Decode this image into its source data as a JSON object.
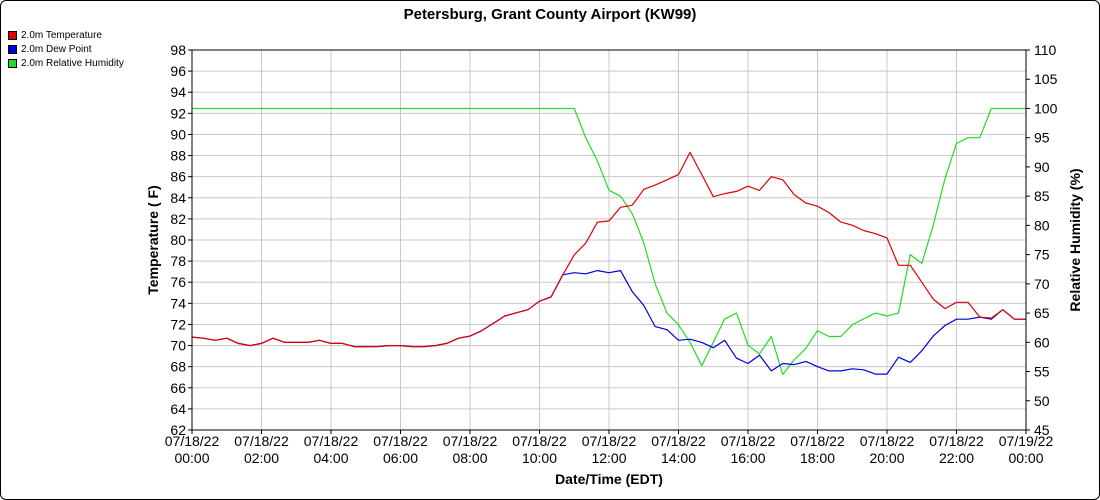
{
  "chart_data": {
    "type": "line",
    "title": "Petersburg, Grant County Airport (KW99)",
    "xlabel": "Date/Time (EDT)",
    "ylabel": "Temperature ( F)",
    "y2label": "Relative Humidity (%)",
    "ylim": [
      62,
      98
    ],
    "y2lim": [
      45,
      110
    ],
    "xlim": [
      "2022-07-18 00:00",
      "2022-07-19 00:00"
    ],
    "grid": true,
    "legend_position": "top-left",
    "x_ticks": [
      {
        "hours": 0,
        "date": "07/18/22",
        "time": "00:00"
      },
      {
        "hours": 2,
        "date": "07/18/22",
        "time": "02:00"
      },
      {
        "hours": 4,
        "date": "07/18/22",
        "time": "04:00"
      },
      {
        "hours": 6,
        "date": "07/18/22",
        "time": "06:00"
      },
      {
        "hours": 8,
        "date": "07/18/22",
        "time": "08:00"
      },
      {
        "hours": 10,
        "date": "07/18/22",
        "time": "10:00"
      },
      {
        "hours": 12,
        "date": "07/18/22",
        "time": "12:00"
      },
      {
        "hours": 14,
        "date": "07/18/22",
        "time": "14:00"
      },
      {
        "hours": 16,
        "date": "07/18/22",
        "time": "16:00"
      },
      {
        "hours": 18,
        "date": "07/18/22",
        "time": "18:00"
      },
      {
        "hours": 20,
        "date": "07/18/22",
        "time": "20:00"
      },
      {
        "hours": 22,
        "date": "07/18/22",
        "time": "22:00"
      },
      {
        "hours": 24,
        "date": "07/19/22",
        "time": "00:00"
      }
    ],
    "y_ticks": [
      62,
      64,
      66,
      68,
      70,
      72,
      74,
      76,
      78,
      80,
      82,
      84,
      86,
      88,
      90,
      92,
      94,
      96,
      98
    ],
    "y2_ticks": [
      45,
      50,
      55,
      60,
      65,
      70,
      75,
      80,
      85,
      90,
      95,
      100,
      105,
      110
    ],
    "series": [
      {
        "name": "2.0m Temperature",
        "color": "#e00000",
        "axis": "left",
        "hours": [
          0,
          0.33,
          0.67,
          1,
          1.33,
          1.67,
          2,
          2.33,
          2.67,
          3,
          3.33,
          3.67,
          4,
          4.33,
          4.67,
          5,
          5.33,
          5.67,
          6,
          6.33,
          6.67,
          7,
          7.33,
          7.67,
          8,
          8.33,
          8.67,
          9,
          9.33,
          9.67,
          10,
          10.33,
          10.67,
          11,
          11.33,
          11.67,
          12,
          12.33,
          12.67,
          13,
          13.33,
          13.67,
          14,
          14.33,
          14.67,
          15,
          15.33,
          15.67,
          16,
          16.33,
          16.67,
          17,
          17.33,
          17.67,
          18,
          18.33,
          18.67,
          19,
          19.33,
          19.67,
          20,
          20.33,
          20.67,
          21,
          21.33,
          21.67,
          22,
          22.33,
          22.67,
          23,
          23.33,
          23.67,
          24
        ],
        "values": [
          70.8,
          70.7,
          70.5,
          70.7,
          70.2,
          70.0,
          70.2,
          70.7,
          70.3,
          70.3,
          70.3,
          70.5,
          70.2,
          70.2,
          69.9,
          69.9,
          69.9,
          70.0,
          70.0,
          69.9,
          69.9,
          70.0,
          70.2,
          70.7,
          70.9,
          71.4,
          72.1,
          72.8,
          73.1,
          73.4,
          74.2,
          74.6,
          76.7,
          78.6,
          79.7,
          81.7,
          81.8,
          83.1,
          83.3,
          84.8,
          85.2,
          85.7,
          86.2,
          88.3,
          86.2,
          84.1,
          84.4,
          84.6,
          85.1,
          84.7,
          86.0,
          85.7,
          84.3,
          83.5,
          83.2,
          82.6,
          81.7,
          81.4,
          80.9,
          80.6,
          80.2,
          77.6,
          77.6,
          76.0,
          74.4,
          73.5,
          74.1,
          74.1,
          72.7,
          72.6,
          73.4,
          72.5,
          72.5
        ]
      },
      {
        "name": "2.0m Dew Point",
        "color": "#0000e0",
        "axis": "left",
        "hours": [
          0,
          0.33,
          0.67,
          1,
          1.33,
          1.67,
          2,
          2.33,
          2.67,
          3,
          3.33,
          3.67,
          4,
          4.33,
          4.67,
          5,
          5.33,
          5.67,
          6,
          6.33,
          6.67,
          7,
          7.33,
          7.67,
          8,
          8.33,
          8.67,
          9,
          9.33,
          9.67,
          10,
          10.33,
          10.67,
          11,
          11.33,
          11.67,
          12,
          12.33,
          12.67,
          13,
          13.33,
          13.67,
          14,
          14.33,
          14.67,
          15,
          15.33,
          15.67,
          16,
          16.33,
          16.67,
          17,
          17.33,
          17.67,
          18,
          18.33,
          18.67,
          19,
          19.33,
          19.67,
          20,
          20.33,
          20.67,
          21,
          21.33,
          21.67,
          22,
          22.33,
          22.67,
          23,
          23.33,
          23.67,
          24
        ],
        "values": [
          70.8,
          70.7,
          70.5,
          70.7,
          70.2,
          70.0,
          70.2,
          70.7,
          70.3,
          70.3,
          70.3,
          70.5,
          70.2,
          70.2,
          69.9,
          69.9,
          69.9,
          70.0,
          70.0,
          69.9,
          69.9,
          70.0,
          70.2,
          70.7,
          70.9,
          71.4,
          72.1,
          72.8,
          73.1,
          73.4,
          74.2,
          74.6,
          76.7,
          76.9,
          76.8,
          77.1,
          76.9,
          77.1,
          75.1,
          73.8,
          71.8,
          71.5,
          70.5,
          70.6,
          70.3,
          69.8,
          70.5,
          68.8,
          68.3,
          69.1,
          67.6,
          68.3,
          68.2,
          68.5,
          68.0,
          67.6,
          67.6,
          67.8,
          67.7,
          67.3,
          67.3,
          68.9,
          68.4,
          69.5,
          70.9,
          71.9,
          72.5,
          72.5,
          72.7,
          72.5,
          73.4,
          72.5,
          72.5
        ]
      },
      {
        "name": "2.0m Relative Humidity",
        "color": "#22dd22",
        "axis": "right",
        "hours": [
          0,
          1,
          2,
          3,
          4,
          5,
          6,
          7,
          8,
          9,
          10,
          10.67,
          11,
          11.33,
          11.67,
          12,
          12.33,
          12.67,
          13,
          13.33,
          13.67,
          14,
          14.33,
          14.67,
          15,
          15.33,
          15.67,
          16,
          16.33,
          16.67,
          17,
          17.33,
          17.67,
          18,
          18.33,
          18.67,
          19,
          19.33,
          19.67,
          20,
          20.33,
          20.67,
          21,
          21.33,
          21.67,
          22,
          22.33,
          22.67,
          23,
          23.33,
          23.67,
          24
        ],
        "values": [
          100,
          100,
          100,
          100,
          100,
          100,
          100,
          100,
          100,
          100,
          100,
          100,
          100,
          95,
          91,
          86,
          85,
          82,
          77,
          70,
          65,
          63,
          60,
          56,
          60,
          64,
          65,
          59.5,
          58,
          61,
          54.5,
          57,
          59,
          62,
          61,
          61,
          63,
          64,
          65,
          64.5,
          65,
          75,
          73.5,
          80,
          88,
          94,
          95,
          95,
          100,
          100,
          100,
          100
        ]
      }
    ]
  }
}
